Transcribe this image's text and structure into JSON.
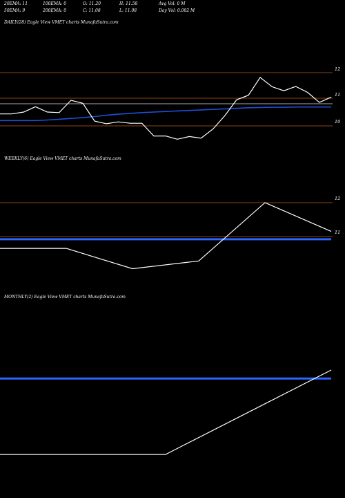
{
  "header": {
    "row1": [
      "20EMA: 11",
      "100EMA: 0",
      "O: 11.20",
      "H: 11.58",
      "Avg Vol: 0  M"
    ],
    "row2": [
      "50EMA: 9",
      "200EMA: 0",
      "C: 11.08",
      "L: 11.08",
      "Day Vol: 0.082  M"
    ]
  },
  "colors": {
    "background": "#000000",
    "price_line": "#ffffff",
    "ema_line": "#1e4fd8",
    "grid_line": "#8b4513",
    "level_line": "#aaaaaa"
  },
  "chart_data": [
    {
      "type": "line",
      "title": "DAILY(28) Eagle  View  VMET charts MunafaSutra.com",
      "y_ticks": [
        "12",
        "11",
        "10"
      ],
      "ylim": [
        9.0,
        12.6
      ],
      "series": [
        {
          "role": "price",
          "values": [
            10.45,
            10.45,
            10.52,
            10.72,
            10.52,
            10.5,
            10.96,
            10.85,
            10.18,
            10.08,
            10.15,
            10.1,
            10.1,
            9.62,
            9.62,
            9.5,
            9.6,
            9.54,
            9.88,
            10.38,
            10.98,
            11.15,
            11.82,
            11.47,
            11.32,
            11.48,
            11.26,
            10.88,
            11.08
          ]
        },
        {
          "role": "ema",
          "values": [
            10.2,
            10.2,
            10.2,
            10.2,
            10.22,
            10.25,
            10.28,
            10.31,
            10.35,
            10.4,
            10.44,
            10.47,
            10.5,
            10.52,
            10.54,
            10.56,
            10.58,
            10.6,
            10.62,
            10.64,
            10.66,
            10.68,
            10.69,
            10.7,
            10.7,
            10.71,
            10.71,
            10.71,
            10.71
          ]
        }
      ]
    },
    {
      "type": "line",
      "title": "WEEKLY(6) Eagle  View  VMET charts MunafaSutra.com",
      "y_ticks": [
        "12",
        "11"
      ],
      "ylim": [
        9.5,
        12.6
      ],
      "series": [
        {
          "role": "price",
          "values": [
            10.65,
            10.65,
            10.05,
            10.28,
            12.0,
            11.15
          ]
        },
        {
          "role": "ema",
          "values": [
            10.92,
            10.92,
            10.92,
            10.92,
            10.92,
            10.92
          ]
        }
      ]
    },
    {
      "type": "line",
      "title": "MONTHLY(2) Eagle  View  VMET charts MunafaSutra.com",
      "y_ticks": [],
      "series": [
        {
          "role": "price",
          "values": [
            0.0,
            0.0,
            1.0
          ]
        },
        {
          "role": "ema",
          "values": [
            0.9,
            0.9,
            0.9
          ]
        }
      ]
    }
  ]
}
